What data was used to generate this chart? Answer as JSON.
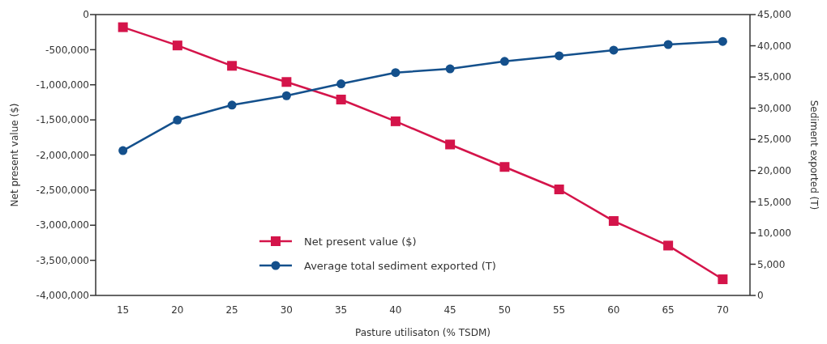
{
  "chart_data": {
    "type": "line",
    "xlabel": "Pasture utilisaton (% TSDM)",
    "ylabel": "Net present value ($)",
    "y2label": "Sediment exported (T)",
    "categories": [
      "15",
      "20",
      "25",
      "30",
      "35",
      "40",
      "45",
      "50",
      "55",
      "60",
      "65",
      "70"
    ],
    "series": [
      {
        "name": "Net present value ($)",
        "color": "#d4144a",
        "marker": "square",
        "values": [
          -180000,
          -440000,
          -730000,
          -960000,
          -1210000,
          -1520000,
          -1850000,
          -2170000,
          -2490000,
          -2940000,
          -3290000,
          -3770000
        ]
      },
      {
        "name": "Average total sediment exported (T)",
        "color": "#14508c",
        "marker": "circle",
        "axis": "y2",
        "values": [
          23200,
          28100,
          30500,
          32000,
          33900,
          35700,
          36300,
          37500,
          38400,
          39300,
          40200,
          40700
        ]
      }
    ],
    "ylim": [
      -4000000,
      0
    ],
    "yticks": [
      {
        "value": -4000000,
        "label": "-4,000,000"
      },
      {
        "value": -3500000,
        "label": "-3,500,000"
      },
      {
        "value": -3000000,
        "label": "-3,000,000"
      },
      {
        "value": -2500000,
        "label": "-2,500,000"
      },
      {
        "value": -2000000,
        "label": "-2,000,000"
      },
      {
        "value": -1500000,
        "label": "-1,500,000"
      },
      {
        "value": -1000000,
        "label": "-1,000,000"
      },
      {
        "value": -500000,
        "label": "-500,000"
      },
      0
    ],
    "y2lim": [
      0,
      45000
    ],
    "y2ticks": [
      0,
      {
        "value": 5000,
        "label": "5,000"
      },
      {
        "value": 10000,
        "label": "10,000"
      },
      {
        "value": 15000,
        "label": "15,000"
      },
      {
        "value": 20000,
        "label": "20,000"
      },
      {
        "value": 25000,
        "label": "25,000"
      },
      {
        "value": 30000,
        "label": "30,000"
      },
      {
        "value": 35000,
        "label": "35,000"
      },
      {
        "value": 40000,
        "label": "40,000"
      },
      {
        "value": 45000,
        "label": "45,000"
      }
    ],
    "legend": "bottom",
    "grid": false
  }
}
